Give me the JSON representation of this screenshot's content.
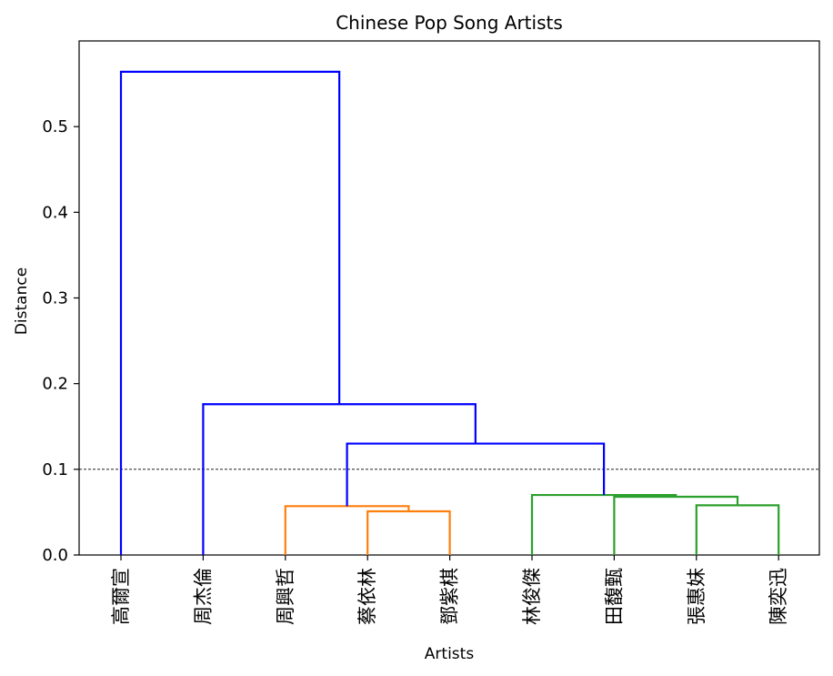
{
  "chart_data": {
    "type": "dendrogram",
    "title": "Chinese Pop Song Artists",
    "xlabel": "Artists",
    "ylabel": "Distance",
    "ylim": [
      0.0,
      0.6
    ],
    "yticks": [
      "0.0",
      "0.1",
      "0.2",
      "0.3",
      "0.4",
      "0.5"
    ],
    "threshold": 0.1,
    "leaves": [
      "高爾宣",
      "周杰倫",
      "周興哲",
      "蔡依林",
      "鄧紫棋",
      "林俊傑",
      "田馥甄",
      "張惠妹",
      "陳奕迅"
    ],
    "merges": [
      {
        "left": [
          "鄧紫棋"
        ],
        "right": [
          "蔡依林"
        ],
        "height": 0.051,
        "color": "#ff7f0e"
      },
      {
        "left": [
          "周興哲"
        ],
        "right": [
          "蔡依林",
          "鄧紫棋"
        ],
        "height": 0.057,
        "color": "#ff7f0e"
      },
      {
        "left": [
          "張惠妹"
        ],
        "right": [
          "陳奕迅"
        ],
        "height": 0.058,
        "color": "#2ca02c"
      },
      {
        "left": [
          "田馥甄"
        ],
        "right": [
          "張惠妹",
          "陳奕迅"
        ],
        "height": 0.068,
        "color": "#2ca02c"
      },
      {
        "left": [
          "林俊傑"
        ],
        "right": [
          "田馥甄",
          "張惠妹",
          "陳奕迅"
        ],
        "height": 0.07,
        "color": "#2ca02c"
      },
      {
        "left": [
          "周興哲",
          "蔡依林",
          "鄧紫棋"
        ],
        "right": [
          "林俊傑",
          "田馥甄",
          "張惠妹",
          "陳奕迅"
        ],
        "height": 0.13,
        "color": "#0000ff"
      },
      {
        "left": [
          "周杰倫"
        ],
        "right": [
          "周興哲",
          "蔡依林",
          "鄧紫棋",
          "林俊傑",
          "田馥甄",
          "張惠妹",
          "陳奕迅"
        ],
        "height": 0.176,
        "color": "#0000ff"
      },
      {
        "left": [
          "高爾宣"
        ],
        "right": [
          "周杰倫",
          "周興哲",
          "蔡依林",
          "鄧紫棋",
          "林俊傑",
          "田馥甄",
          "張惠妹",
          "陳奕迅"
        ],
        "height": 0.564,
        "color": "#0000ff"
      }
    ],
    "grid": false,
    "colors": {
      "cluster_orange": "#ff7f0e",
      "cluster_green": "#2ca02c",
      "above_threshold": "#0000ff",
      "threshold_line": "#000000"
    }
  }
}
